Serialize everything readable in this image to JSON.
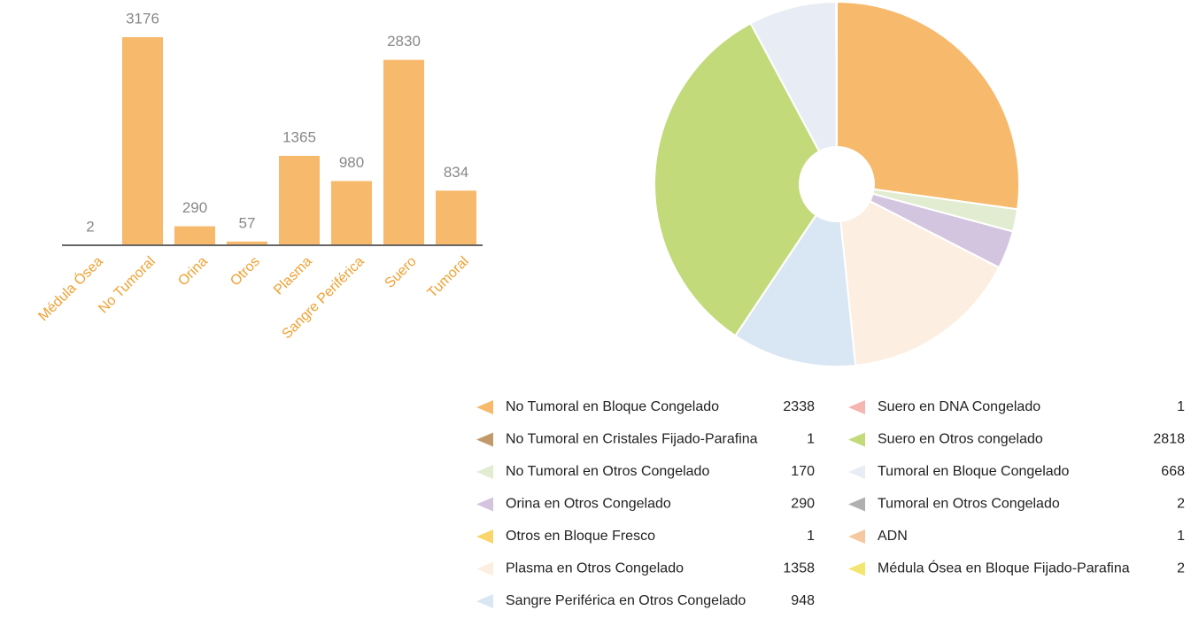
{
  "chart_data": [
    {
      "type": "bar",
      "categories": [
        "Médula Ósea",
        "No Tumoral",
        "Orina",
        "Otros",
        "Plasma",
        "Sangre Periférica",
        "Suero",
        "Tumoral"
      ],
      "values": [
        2,
        3176,
        290,
        57,
        1365,
        980,
        2830,
        834
      ],
      "colors": [
        "#a8804e",
        "#f7b96b",
        "#f7b96b",
        "#f7b96b",
        "#f7b96b",
        "#f7b96b",
        "#f7b96b",
        "#f7b96b"
      ],
      "ylim": [
        0,
        3176
      ]
    },
    {
      "type": "pie",
      "categories": [
        "No Tumoral en Bloque Congelado",
        "No Tumoral en Cristales Fijado-Parafina",
        "No Tumoral en Otros Congelado",
        "Orina en Otros Congelado",
        "Otros en Bloque Fresco",
        "Plasma en Otros Congelado",
        "Sangre Periférica en Otros Congelado",
        "Suero en  DNA Congelado",
        "Suero en Otros congelado",
        "Tumoral en Bloque Congelado",
        "Tumoral en Otros Congelado",
        "ADN",
        "Médula Ósea en Bloque Fijado-Parafina"
      ],
      "values": [
        2338,
        1,
        170,
        290,
        1,
        1358,
        948,
        1,
        2818,
        668,
        2,
        1,
        2
      ],
      "colors": [
        "#f7b96b",
        "#c29a6a",
        "#e2ecd0",
        "#d3c4e0",
        "#fad56b",
        "#fcefe2",
        "#d9e6f3",
        "#f5b5b0",
        "#c2da7a",
        "#e8edf5",
        "#b0b0b0",
        "#f5c8a0",
        "#f2e670"
      ]
    }
  ]
}
